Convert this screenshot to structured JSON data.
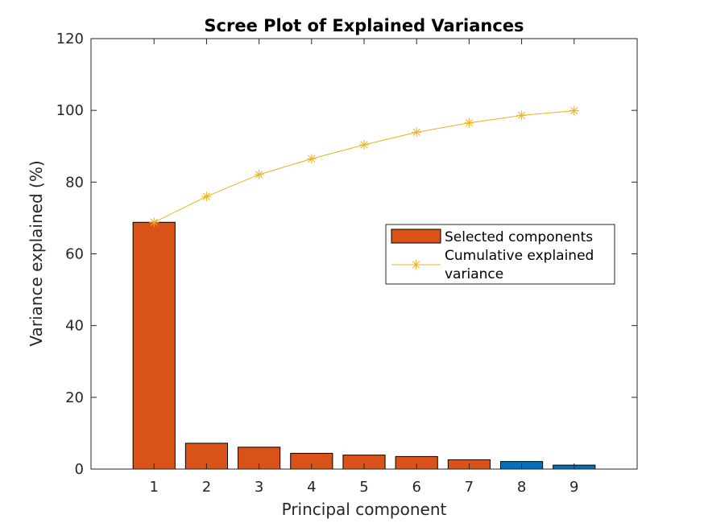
{
  "chart_data": {
    "type": "bar",
    "title": "Scree Plot of Explained Variances",
    "xlabel": "Principal component",
    "ylabel": "Variance explained (%)",
    "categories": [
      "1",
      "2",
      "3",
      "4",
      "5",
      "6",
      "7",
      "8",
      "9"
    ],
    "x": [
      1,
      2,
      3,
      4,
      5,
      6,
      7,
      8,
      9
    ],
    "values": [
      68.8,
      7.2,
      6.1,
      4.4,
      3.9,
      3.5,
      2.6,
      2.1,
      1.1
    ],
    "selected": [
      true,
      true,
      true,
      true,
      true,
      true,
      true,
      false,
      false
    ],
    "cumulative": [
      68.8,
      76.0,
      82.1,
      86.5,
      90.4,
      93.9,
      96.5,
      98.6,
      99.9
    ],
    "ylim": [
      0,
      120
    ],
    "yticks": [
      0,
      20,
      40,
      60,
      80,
      100,
      120
    ],
    "xlim": [
      -0.2,
      10.2
    ],
    "grid": false,
    "legend_position": "right",
    "series": [
      {
        "name": "Selected components",
        "kind": "bar"
      },
      {
        "name": "Cumulative explained variance",
        "kind": "line"
      }
    ],
    "colors": {
      "selected_bar": "#D95319",
      "unselected_bar": "#0072BD",
      "cumulative_line": "#EDB120",
      "axis": "#262626"
    }
  }
}
